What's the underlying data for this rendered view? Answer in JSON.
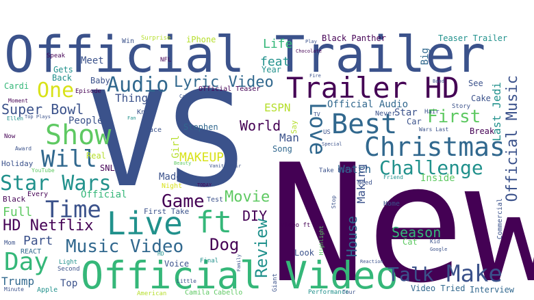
{
  "palette": {
    "dark_purple": "#440154",
    "indigo": "#3b528b",
    "blue": "#31688e",
    "teal": "#21918c",
    "green_teal": "#35b779",
    "green": "#5ec962",
    "lime": "#b5de2b",
    "yellow": "#d8e219"
  },
  "words": {
    "vs": "VS",
    "new": "New",
    "official_trailer": "Official Trailer",
    "official_video": "Official Video",
    "trailer_hd": "Trailer HD",
    "christmas": "Christmas",
    "best": "Best",
    "show": "Show",
    "live": "Live",
    "ft": "ft",
    "music_video": "Music Video",
    "star_wars": "Star Wars",
    "challenge": "Challenge",
    "audio": "Audio",
    "lyric_video": "Lyric Video",
    "one": "One",
    "will": "Will",
    "time": "Time",
    "day": "Day",
    "make": "Make",
    "talk": "Talk",
    "love": "Love",
    "first": "First",
    "super_bowl": "Super Bowl",
    "official_music": "Official Music",
    "game": "Game",
    "movie": "Movie",
    "hd_netflix": "HD Netflix",
    "full": "Full",
    "part": "Part",
    "dog": "Dog",
    "diy": "DIY",
    "review": "Review",
    "house": "House",
    "season": "Season",
    "makeup": "MAKEUP",
    "world": "World",
    "feat": "feat",
    "life": "Life",
    "espn": "ESPN",
    "watch": "Watch",
    "man": "Man",
    "official_audio": "Official Audio",
    "last_jedi": "Last Jedi",
    "people": "People",
    "thing": "Thing",
    "baby": "Baby",
    "meet": "Meet",
    "gets": "Gets",
    "back": "Back",
    "cardi": "Cardi",
    "black_panther": "Black Panther",
    "teaser_trailer": "Teaser Trailer",
    "official_teaser": "Official Teaser",
    "iphone": "iPhone",
    "year": "Year",
    "big": "Big",
    "trump": "Trump",
    "top": "Top",
    "voice": "Voice",
    "interview": "Interview",
    "video_tried": "Video Tried",
    "look": "Look",
    "cat": "Cat",
    "home": "Home",
    "inside": "Inside",
    "making": "Making",
    "star": "Star",
    "car": "Car",
    "break": "Break",
    "cake": "Cake",
    "see": "See",
    "song": "Song",
    "girl": "Girl",
    "stephen": "Stephen",
    "made": "Made",
    "night": "Night",
    "first_take": "First Take",
    "test": "Test",
    "snl": "SNL",
    "real": "Real",
    "holiday": "Holiday",
    "black": "Black",
    "every": "Every",
    "official": "Official",
    "apple": "Apple",
    "camila_cabello": "Camila Cabello",
    "american": "American",
    "performance": "Performance",
    "take_espn": "Take ESPN",
    "commercial": "Commercial",
    "never": "Never",
    "know": "Know",
    "face": "Face",
    "win": "Win",
    "surprise": "Surprise",
    "nfl": "NFL",
    "speak": "Speak",
    "episode": "Episode",
    "moment": "Moment",
    "react": "REACT",
    "mom": "Mom",
    "now": "Now",
    "award": "Award",
    "youtube": "YouTube",
    "story": "Story",
    "hair": "Hair",
    "say": "Say",
    "us": "US",
    "wars_last": "Wars Last",
    "need": "Need",
    "friend": "Friend",
    "kid": "Kid",
    "google": "Google",
    "today": "TODAY",
    "final": "Final",
    "second": "Second",
    "light": "Light",
    "minute": "Minute",
    "little": "Little",
    "tour": "Tour",
    "giant": "Giant",
    "highlight": "Highlight",
    "beauty": "Beauty",
    "vanity_fair": "Vanity Fair",
    "hd": "HD",
    "video_ft": "Video ft",
    "stop": "Stop",
    "tv": "TV",
    "fire": "Fire",
    "band": "Band",
    "top_plays": "Top Plays",
    "call": "Call",
    "fan": "Fan",
    "family": "Family",
    "ellen": "Ellen",
    "special": "Special",
    "reaction": "Reaction",
    "chocolate": "Chocolate",
    "play": "Play"
  }
}
